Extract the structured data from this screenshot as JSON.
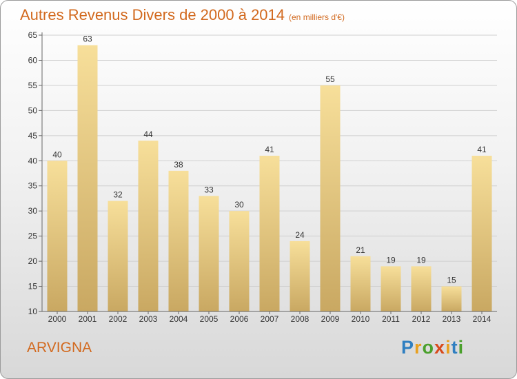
{
  "chart_data": {
    "type": "bar",
    "title": "Autres Revenus Divers de 2000 à 2014",
    "subtitle": "(en milliers d'€)",
    "categories": [
      "2000",
      "2001",
      "2002",
      "2003",
      "2004",
      "2005",
      "2006",
      "2007",
      "2008",
      "2009",
      "2010",
      "2011",
      "2012",
      "2013",
      "2014"
    ],
    "values": [
      40,
      63,
      32,
      44,
      38,
      33,
      30,
      41,
      24,
      55,
      21,
      19,
      19,
      15,
      41
    ],
    "xlabel": "",
    "ylabel": "",
    "ylim": [
      10,
      65
    ],
    "yticks": [
      10,
      15,
      20,
      25,
      30,
      35,
      40,
      45,
      50,
      55,
      60,
      65
    ],
    "grid": true,
    "legend": "none"
  },
  "footer": {
    "place": "ARVIGNA"
  },
  "logo": {
    "letters": [
      "P",
      "r",
      "o",
      "x",
      "i",
      "t",
      "i"
    ],
    "colors": [
      "#2f7fc1",
      "#e8a020",
      "#4aa02c",
      "#d84a1b",
      "#e8a020",
      "#2f7fc1",
      "#4aa02c"
    ]
  },
  "colors": {
    "title": "#d2691e",
    "bar_top": "#f7df9a",
    "bar_bottom": "#c9a862",
    "grid": "#cfcfcf",
    "axis": "#666666",
    "label": "#333333"
  }
}
